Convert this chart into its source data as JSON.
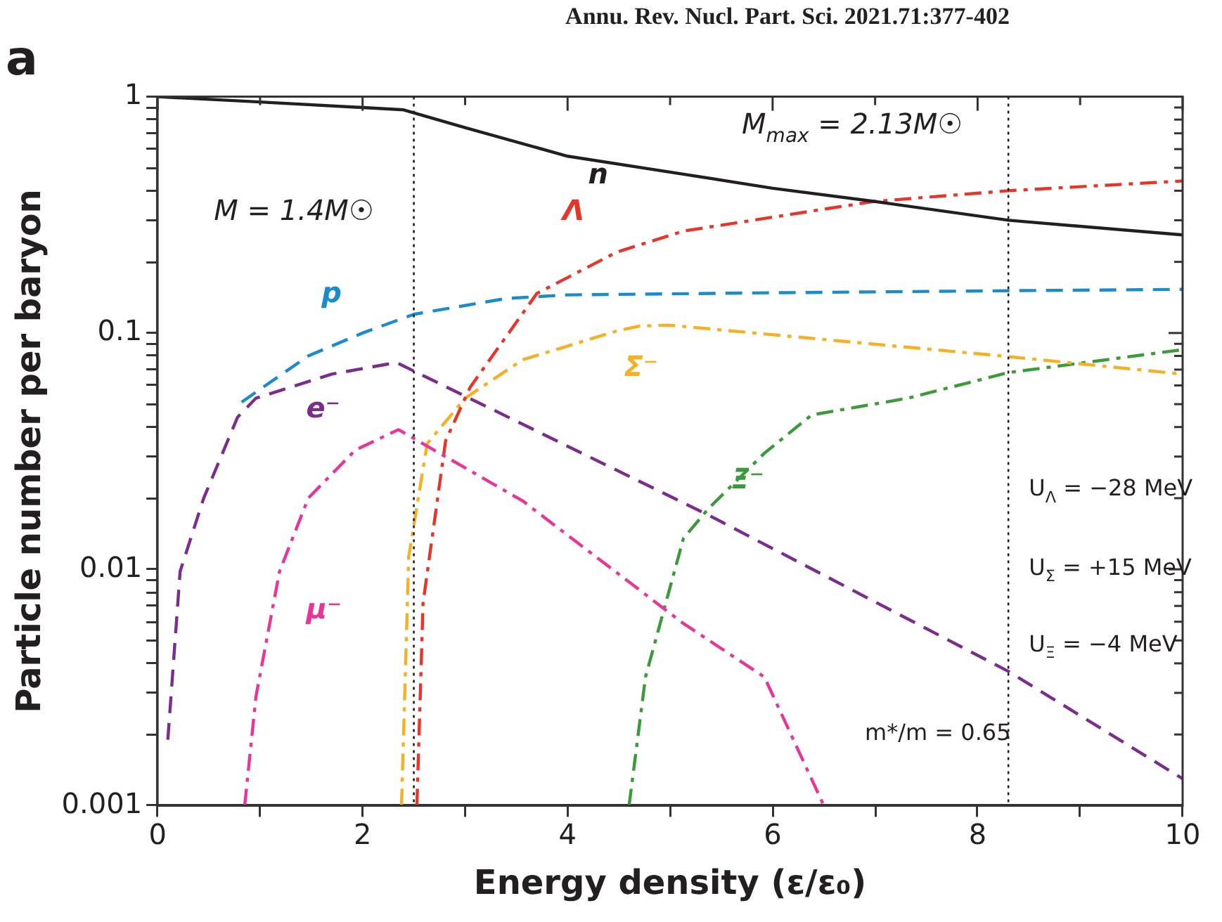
{
  "chart_data": {
    "type": "line",
    "title": "a",
    "xlabel": "Energy density (ε/ε₀)",
    "ylabel": "Particle number per baryon",
    "log": "y",
    "legend": false,
    "marker": "none",
    "xlim": [
      0,
      10
    ],
    "ylim": [
      0.001,
      1
    ],
    "xticks": [
      0,
      {
        "value": 1,
        "label": null
      },
      2,
      {
        "value": 3,
        "label": null
      },
      4,
      {
        "value": 5,
        "label": null
      },
      6,
      {
        "value": 7,
        "label": null
      },
      8,
      {
        "value": 9,
        "label": null
      },
      10
    ],
    "yticks": [
      0.001,
      {
        "value": 0.002,
        "label": null
      },
      {
        "value": 0.003,
        "label": null
      },
      {
        "value": 0.004,
        "label": null
      },
      {
        "value": 0.005,
        "label": null
      },
      {
        "value": 0.006,
        "label": null
      },
      {
        "value": 0.007,
        "label": null
      },
      {
        "value": 0.008,
        "label": null
      },
      {
        "value": 0.009,
        "label": null
      },
      0.01,
      {
        "value": 0.02,
        "label": null
      },
      {
        "value": 0.03,
        "label": null
      },
      {
        "value": 0.04,
        "label": null
      },
      {
        "value": 0.05,
        "label": null
      },
      {
        "value": 0.06,
        "label": null
      },
      {
        "value": 0.07,
        "label": null
      },
      {
        "value": 0.08,
        "label": null
      },
      {
        "value": 0.09,
        "label": null
      },
      0.1,
      {
        "value": 0.2,
        "label": null
      },
      {
        "value": 0.3,
        "label": null
      },
      {
        "value": 0.4,
        "label": null
      },
      {
        "value": 0.5,
        "label": null
      },
      {
        "value": 0.6,
        "label": null
      },
      {
        "value": 0.7,
        "label": null
      },
      {
        "value": 0.8,
        "label": null
      },
      {
        "value": 0.9,
        "label": null
      },
      1
    ],
    "series": [
      {
        "name": "n",
        "color": "#231f20",
        "line_style": "solid",
        "x": [
          0,
          1,
          2,
          2.4,
          3,
          4,
          5.13,
          6,
          7,
          8.3,
          10
        ],
        "values": [
          1.0,
          0.95,
          0.9,
          0.88,
          0.74,
          0.56,
          0.47,
          0.41,
          0.36,
          0.3,
          0.26
        ]
      },
      {
        "name": "p",
        "color": "#1a8ccb",
        "line_style": "dashed",
        "x": [
          0.82,
          1.47,
          2.0,
          2.5,
          3.4,
          4,
          6,
          8.3,
          10
        ],
        "values": [
          0.051,
          0.08,
          0.1,
          0.12,
          0.14,
          0.145,
          0.148,
          0.151,
          0.153
        ]
      },
      {
        "name": "e⁻",
        "color": "#7b2d8e",
        "line_style": "dashed",
        "x": [
          0.1,
          0.22,
          0.45,
          0.78,
          0.96,
          1.7,
          2.33,
          5.37,
          8.3,
          10
        ],
        "values": [
          0.0019,
          0.0098,
          0.02,
          0.044,
          0.053,
          0.067,
          0.075,
          0.017,
          0.0037,
          0.0013
        ]
      },
      {
        "name": "μ⁻",
        "color": "#e8359a",
        "line_style": "dashdot",
        "x": [
          0.85,
          0.96,
          1.19,
          1.47,
          1.93,
          2.35,
          3.56,
          5.13,
          5.92,
          6.5
        ],
        "values": [
          0.001,
          0.0029,
          0.0098,
          0.02,
          0.032,
          0.039,
          0.0195,
          0.0059,
          0.0035,
          0.001
        ]
      },
      {
        "name": "Λ",
        "color": "#e8352a",
        "line_style": "dashdot",
        "x": [
          2.53,
          2.59,
          2.81,
          3.05,
          3.7,
          4.48,
          5.13,
          6.98,
          8.3,
          10
        ],
        "values": [
          0.001,
          0.0072,
          0.035,
          0.059,
          0.147,
          0.22,
          0.27,
          0.36,
          0.4,
          0.44
        ]
      },
      {
        "name": "Σ⁻",
        "color": "#f6b024",
        "line_style": "dashdot",
        "x": [
          2.38,
          2.45,
          2.63,
          3.0,
          3.56,
          4.48,
          4.7,
          4.99,
          8.23,
          10
        ],
        "values": [
          0.001,
          0.0113,
          0.034,
          0.053,
          0.077,
          0.102,
          0.107,
          0.108,
          0.08,
          0.067
        ]
      },
      {
        "name": "Ξ⁻",
        "color": "#3b9a3b",
        "line_style": "dashdot",
        "x": [
          4.6,
          4.76,
          5.13,
          5.37,
          5.92,
          6.38,
          7.32,
          8.3,
          10
        ],
        "values": [
          0.001,
          0.0035,
          0.0135,
          0.018,
          0.031,
          0.045,
          0.053,
          0.068,
          0.085
        ]
      }
    ],
    "ref_lines": [
      {
        "axis": "x",
        "value": 2.5,
        "color": "#231f20",
        "line_style": "dotted"
      },
      {
        "axis": "x",
        "value": 8.3,
        "color": "#231f20",
        "line_style": "dotted"
      }
    ],
    "annotations": [
      "Annu. Rev. Nucl. Part. Sci. 2021.71:377-402",
      "U$_{Λ}$ = −28 MeV",
      "U$_{Σ}$ = +15 MeV",
      "U$_{Ξ}$ = −4 MeV",
      "m*/m = 0.65",
      "M = 1.4M☉",
      "M$_{max}$ = 2.13M☉"
    ]
  }
}
